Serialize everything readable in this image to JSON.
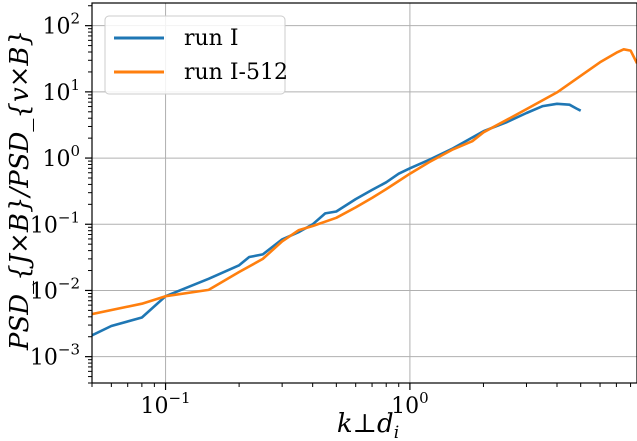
{
  "chart_data": {
    "type": "line",
    "xscale": "log",
    "yscale": "log",
    "xlim": [
      0.05,
      8.5
    ],
    "ylim": [
      0.0004,
      220
    ],
    "grid": true,
    "legend_position": "top-left",
    "xlabel": "k⊥d",
    "xlabel_sub": "i",
    "ylabel": "PSD_{J×B}/PSD_{v×B}",
    "x_ticks": [
      {
        "value": 0.1,
        "base": "10",
        "exp": "−1"
      },
      {
        "value": 1,
        "base": "10",
        "exp": "0"
      }
    ],
    "y_ticks": [
      {
        "value": 0.001,
        "base": "10",
        "exp": "−3"
      },
      {
        "value": 0.01,
        "base": "10",
        "exp": "−2"
      },
      {
        "value": 0.1,
        "base": "10",
        "exp": "−1"
      },
      {
        "value": 1,
        "base": "10",
        "exp": "0"
      },
      {
        "value": 10,
        "base": "10",
        "exp": "1"
      },
      {
        "value": 100,
        "base": "10",
        "exp": "2"
      }
    ],
    "series": [
      {
        "name": "run I",
        "color": "#1f77b4",
        "points": [
          [
            0.05,
            0.0021
          ],
          [
            0.06,
            0.0029
          ],
          [
            0.08,
            0.0039
          ],
          [
            0.1,
            0.0082
          ],
          [
            0.15,
            0.015
          ],
          [
            0.2,
            0.024
          ],
          [
            0.22,
            0.032
          ],
          [
            0.25,
            0.035
          ],
          [
            0.3,
            0.059
          ],
          [
            0.35,
            0.076
          ],
          [
            0.4,
            0.1
          ],
          [
            0.45,
            0.146
          ],
          [
            0.5,
            0.156
          ],
          [
            0.6,
            0.24
          ],
          [
            0.7,
            0.33
          ],
          [
            0.8,
            0.43
          ],
          [
            0.9,
            0.58
          ],
          [
            1.0,
            0.7
          ],
          [
            1.2,
            0.94
          ],
          [
            1.5,
            1.4
          ],
          [
            2.0,
            2.55
          ],
          [
            2.5,
            3.5
          ],
          [
            3.0,
            4.8
          ],
          [
            3.5,
            6.1
          ],
          [
            4.0,
            6.6
          ],
          [
            4.5,
            6.4
          ],
          [
            4.8,
            5.6
          ],
          [
            5.0,
            5.2
          ]
        ]
      },
      {
        "name": "run I-512",
        "color": "#ff7f0e",
        "points": [
          [
            0.05,
            0.0044
          ],
          [
            0.08,
            0.0063
          ],
          [
            0.1,
            0.0082
          ],
          [
            0.15,
            0.0102
          ],
          [
            0.2,
            0.019
          ],
          [
            0.25,
            0.03
          ],
          [
            0.3,
            0.055
          ],
          [
            0.35,
            0.081
          ],
          [
            0.4,
            0.094
          ],
          [
            0.5,
            0.125
          ],
          [
            0.6,
            0.18
          ],
          [
            0.7,
            0.25
          ],
          [
            0.8,
            0.34
          ],
          [
            0.9,
            0.45
          ],
          [
            1.0,
            0.58
          ],
          [
            1.2,
            0.87
          ],
          [
            1.5,
            1.35
          ],
          [
            1.8,
            1.8
          ],
          [
            2.0,
            2.45
          ],
          [
            2.5,
            3.8
          ],
          [
            3.0,
            5.5
          ],
          [
            4.0,
            9.8
          ],
          [
            5.0,
            17.5
          ],
          [
            6.0,
            28
          ],
          [
            7.0,
            39
          ],
          [
            7.5,
            44
          ],
          [
            8.0,
            42
          ],
          [
            8.5,
            27
          ]
        ]
      }
    ]
  }
}
